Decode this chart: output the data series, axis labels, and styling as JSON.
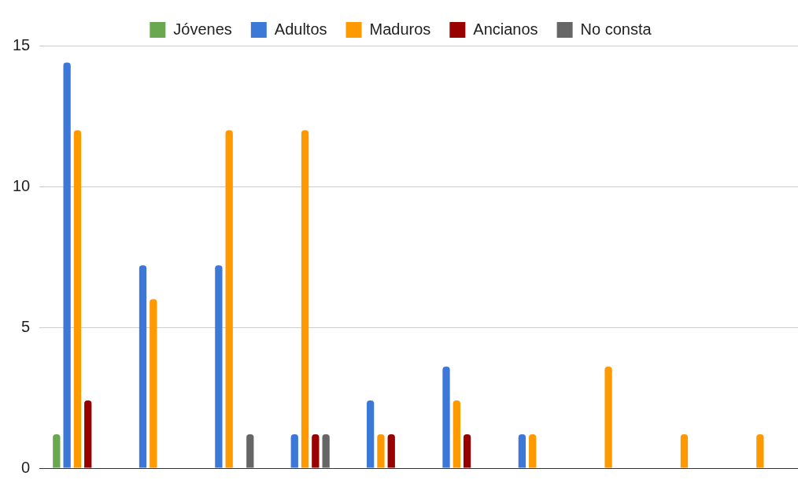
{
  "chart_data": {
    "type": "bar",
    "categories": [
      null,
      null,
      null,
      null,
      null,
      null,
      null,
      null,
      null,
      null
    ],
    "series": [
      {
        "name": "Jóvenes",
        "color": "#6aa84f",
        "values": [
          1.2,
          null,
          null,
          null,
          null,
          null,
          null,
          null,
          null,
          null
        ]
      },
      {
        "name": "Adultos",
        "color": "#3c78d8",
        "values": [
          14.4,
          7.2,
          7.2,
          1.2,
          2.4,
          3.6,
          1.2,
          null,
          null,
          null
        ]
      },
      {
        "name": "Maduros",
        "color": "#ff9900",
        "values": [
          12,
          6,
          12,
          12,
          1.2,
          2.4,
          1.2,
          3.6,
          1.2,
          1.2
        ]
      },
      {
        "name": "Ancianos",
        "color": "#990000",
        "values": [
          2.4,
          null,
          null,
          1.2,
          1.2,
          1.2,
          null,
          null,
          null,
          null
        ]
      },
      {
        "name": "No consta",
        "color": "#666666",
        "values": [
          null,
          null,
          1.2,
          1.2,
          null,
          null,
          null,
          null,
          null,
          null
        ]
      }
    ],
    "ylim": [
      0,
      15
    ],
    "yticks": [
      0,
      5,
      10,
      15
    ],
    "grid": "y",
    "legend": "top"
  }
}
